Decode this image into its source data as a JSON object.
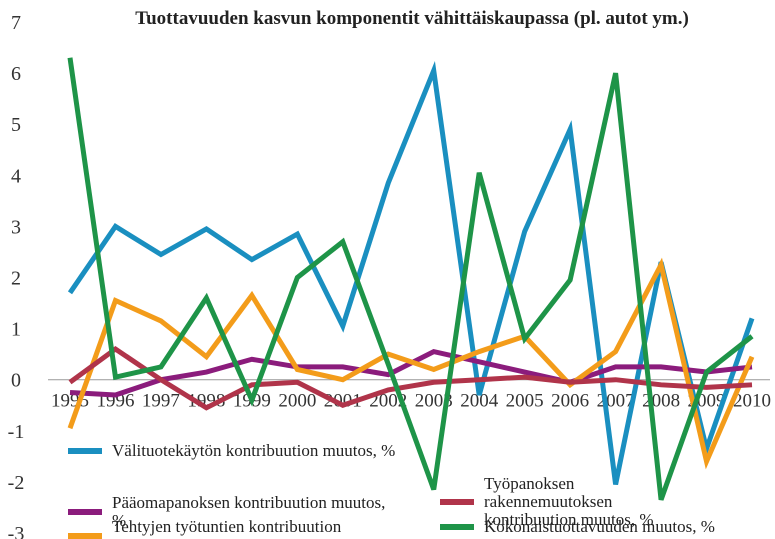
{
  "chart_data": {
    "type": "line",
    "title": "Tuottavuuden kasvun komponentit vähittäiskaupassa (pl. autot ym.)",
    "categories": [
      "1995",
      "1996",
      "1997",
      "1998",
      "1999",
      "2000",
      "2001",
      "2002",
      "2003",
      "2004",
      "2005",
      "2006",
      "2007",
      "2008",
      "2009",
      "2010"
    ],
    "ylim": [
      -3,
      7
    ],
    "yticks": [
      -3,
      -2,
      -1,
      0,
      1,
      2,
      3,
      4,
      5,
      6,
      7
    ],
    "series": [
      {
        "name": "Välituotekäytön kontribuution muutos, %",
        "color": "#1a8fc0",
        "values": [
          1.7,
          3.0,
          2.45,
          2.95,
          2.35,
          2.85,
          1.05,
          3.85,
          6.05,
          -0.3,
          2.9,
          4.9,
          -2.05,
          2.3,
          -1.35,
          1.2
        ]
      },
      {
        "name": "Pääomapanoksen kontribuution muutos, %",
        "color": "#8b1c7c",
        "values": [
          -0.25,
          -0.3,
          0.0,
          0.15,
          0.4,
          0.25,
          0.25,
          0.1,
          0.55,
          0.35,
          0.15,
          -0.05,
          0.25,
          0.25,
          0.15,
          0.25
        ]
      },
      {
        "name": "Tehtyjen työtuntien kontribuution muutos, %",
        "color": "#f39c1a",
        "values": [
          -0.95,
          1.55,
          1.15,
          0.45,
          1.65,
          0.2,
          0.0,
          0.5,
          0.2,
          0.55,
          0.85,
          -0.1,
          0.55,
          2.25,
          -1.6,
          0.45
        ]
      },
      {
        "name": "Työpanoksen rakennemuutoksen kontribuution muutos, %",
        "color": "#b0344a",
        "values": [
          -0.05,
          0.6,
          0.0,
          -0.55,
          -0.1,
          -0.05,
          -0.5,
          -0.2,
          -0.05,
          0.0,
          0.05,
          -0.05,
          0.0,
          -0.1,
          -0.15,
          -0.1
        ]
      },
      {
        "name": "Kokonaistuottavuuden muutos, %",
        "color": "#1e9448",
        "values": [
          6.3,
          0.05,
          0.25,
          1.6,
          -0.4,
          2.0,
          2.7,
          0.3,
          -2.15,
          4.05,
          0.8,
          1.95,
          6.0,
          -2.35,
          0.15,
          0.85
        ]
      }
    ]
  }
}
